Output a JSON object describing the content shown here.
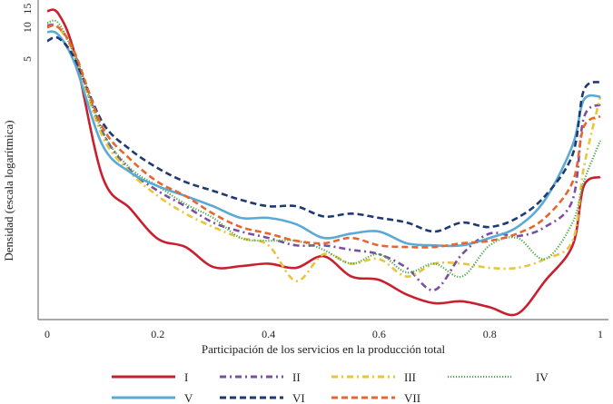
{
  "chart_data": {
    "type": "line",
    "title": "",
    "xlabel": "Participación de los servicios en la producción total",
    "ylabel": "Densidad (escala logarítmica)",
    "yscale": "log",
    "xlim": [
      0,
      1
    ],
    "ylim": [
      0.017,
      18
    ],
    "grid": false,
    "legend_position": "bottom",
    "x_ticks": [
      {
        "v": 0,
        "label": "0"
      },
      {
        "v": 0.2,
        "label": "0.2"
      },
      {
        "v": 0.4,
        "label": "0.4"
      },
      {
        "v": 0.6,
        "label": "0.6"
      },
      {
        "v": 0.8,
        "label": "0.8"
      },
      {
        "v": 1,
        "label": "1"
      }
    ],
    "y_ticks": [
      {
        "v": 5,
        "label": "5"
      },
      {
        "v": 10,
        "label": "10"
      },
      {
        "v": 15,
        "label": "15"
      }
    ],
    "x": [
      0,
      0.02,
      0.05,
      0.1,
      0.15,
      0.2,
      0.25,
      0.3,
      0.35,
      0.4,
      0.45,
      0.5,
      0.55,
      0.6,
      0.65,
      0.7,
      0.75,
      0.8,
      0.85,
      0.9,
      0.95,
      0.97,
      1
    ],
    "series": [
      {
        "name": "I",
        "color": "#c8202f",
        "dash": "solid",
        "values": [
          14.3,
          13.5,
          5.5,
          0.38,
          0.19,
          0.098,
          0.082,
          0.053,
          0.054,
          0.057,
          0.052,
          0.067,
          0.043,
          0.04,
          0.029,
          0.024,
          0.025,
          0.022,
          0.019,
          0.039,
          0.085,
          0.31,
          0.38
        ]
      },
      {
        "name": "II",
        "color": "#7b4fa0",
        "dash": "dash-dot",
        "values": [
          10.4,
          10,
          5.5,
          1.02,
          0.44,
          0.28,
          0.2,
          0.14,
          0.115,
          0.1,
          0.085,
          0.085,
          0.077,
          0.07,
          0.052,
          0.032,
          0.07,
          0.11,
          0.104,
          0.127,
          0.23,
          1.37,
          1.85
        ]
      },
      {
        "name": "III",
        "color": "#e8c53a",
        "dash": "dash-dot",
        "values": [
          10,
          10,
          5.3,
          0.92,
          0.42,
          0.25,
          0.17,
          0.127,
          0.1,
          0.085,
          0.039,
          0.07,
          0.057,
          0.063,
          0.043,
          0.057,
          0.057,
          0.052,
          0.052,
          0.063,
          0.094,
          0.46,
          2.2
        ]
      },
      {
        "name": "IV",
        "color": "#4aa84a",
        "dash": "dotted",
        "values": [
          11,
          11,
          5.3,
          1.02,
          0.46,
          0.31,
          0.21,
          0.155,
          0.1,
          0.094,
          0.094,
          0.077,
          0.057,
          0.07,
          0.047,
          0.057,
          0.043,
          0.085,
          0.1,
          0.063,
          0.14,
          0.34,
          0.84
        ]
      },
      {
        "name": "V",
        "color": "#5aa9d6",
        "dash": "solid",
        "values": [
          9.05,
          8.5,
          4.5,
          0.76,
          0.42,
          0.31,
          0.25,
          0.2,
          0.155,
          0.155,
          0.135,
          0.1,
          0.11,
          0.115,
          0.089,
          0.085,
          0.085,
          0.1,
          0.127,
          0.23,
          0.76,
          2.04,
          2.2
        ]
      },
      {
        "name": "VI",
        "color": "#1f3a73",
        "dash": "dashed",
        "values": [
          7.4,
          7.9,
          5.0,
          1.25,
          0.69,
          0.46,
          0.34,
          0.28,
          0.23,
          0.2,
          0.2,
          0.16,
          0.17,
          0.155,
          0.14,
          0.115,
          0.14,
          0.127,
          0.155,
          0.25,
          0.62,
          2.5,
          3.04
        ]
      },
      {
        "name": "VII",
        "color": "#e8652e",
        "dash": "dashed",
        "values": [
          10,
          10,
          5.7,
          1.13,
          0.56,
          0.34,
          0.25,
          0.17,
          0.127,
          0.11,
          0.094,
          0.089,
          0.1,
          0.085,
          0.082,
          0.082,
          0.089,
          0.094,
          0.11,
          0.155,
          0.34,
          1.13,
          1.43
        ]
      }
    ]
  }
}
